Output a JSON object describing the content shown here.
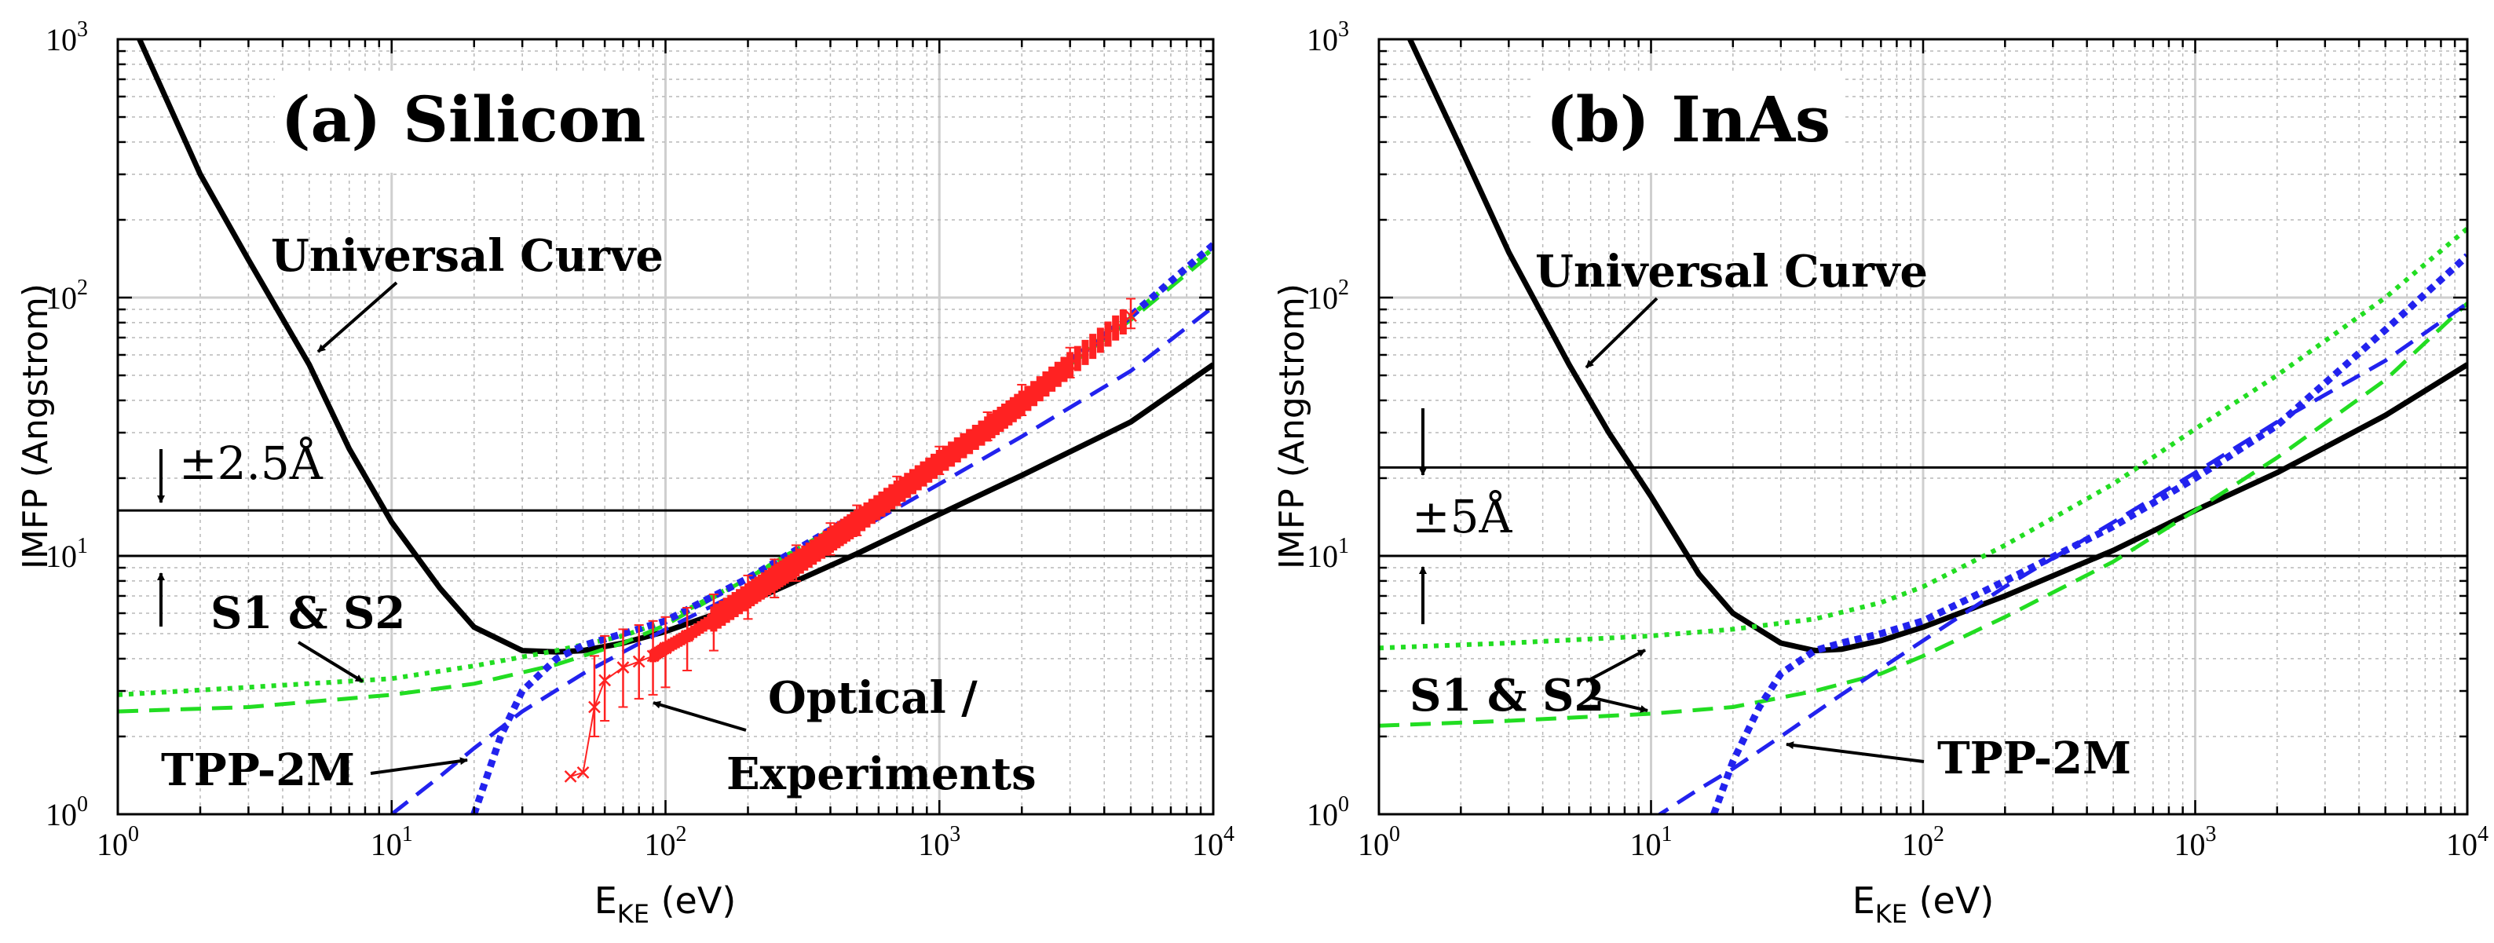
{
  "chart_data": [
    {
      "type": "line",
      "title": "(a) Silicon",
      "xlabel_main": "E",
      "xlabel_sub": "KE",
      "xlabel_unit": " (eV)",
      "ylabel": "IMFP (Angstrom)",
      "xscale": "log",
      "yscale": "log",
      "xlim": [
        1,
        10000
      ],
      "ylim": [
        1,
        1000
      ],
      "grid": true,
      "x_ticks": [
        {
          "b": "10",
          "e": "0"
        },
        {
          "b": "10",
          "e": "1"
        },
        {
          "b": "10",
          "e": "2"
        },
        {
          "b": "10",
          "e": "3"
        },
        {
          "b": "10",
          "e": "4"
        }
      ],
      "y_ticks": [
        {
          "b": "10",
          "e": "0"
        },
        {
          "b": "10",
          "e": "1"
        },
        {
          "b": "10",
          "e": "2"
        },
        {
          "b": "10",
          "e": "3"
        }
      ],
      "hlines": [
        10,
        15
      ],
      "band_label": "±2.5Å",
      "series": [
        {
          "key": "universal",
          "color": "#000000",
          "style": "solid",
          "x": [
            1.2,
            2,
            3,
            5,
            7,
            10,
            15,
            20,
            30,
            40,
            50,
            70,
            100,
            200,
            500,
            1000,
            2000,
            5000,
            10000
          ],
          "y": [
            1000,
            300,
            140,
            55,
            26,
            13.5,
            7.5,
            5.3,
            4.3,
            4.25,
            4.3,
            4.6,
            5.1,
            6.6,
            10.2,
            14.5,
            20.5,
            33,
            55
          ]
        },
        {
          "key": "s1s2_dotted",
          "color": "#22dd22",
          "style": "dotted",
          "x": [
            1,
            3,
            10,
            20,
            40,
            70,
            100,
            200,
            500,
            1000,
            2000,
            5000,
            10000
          ],
          "y": [
            2.9,
            3.1,
            3.35,
            3.75,
            4.3,
            4.9,
            5.6,
            8.2,
            14.5,
            24,
            41,
            85,
            155
          ]
        },
        {
          "key": "s1s2_dashed",
          "color": "#22dd22",
          "style": "dashed",
          "x": [
            1,
            3,
            10,
            20,
            40,
            70,
            100,
            200,
            500,
            1000,
            2000,
            5000,
            10000
          ],
          "y": [
            2.5,
            2.6,
            2.9,
            3.2,
            3.8,
            4.6,
            5.4,
            8.2,
            14.5,
            23,
            40,
            82,
            150
          ]
        },
        {
          "key": "tpp2m_dotted",
          "color": "#2222ee",
          "style": "dotted",
          "x": [
            20,
            25,
            30,
            40,
            50,
            70,
            100,
            200,
            500,
            1000,
            2000,
            5000,
            10000
          ],
          "y": [
            1.0,
            2.0,
            3.0,
            4.0,
            4.5,
            5.0,
            5.6,
            8.2,
            14.5,
            24,
            41,
            85,
            160
          ]
        },
        {
          "key": "tpp2m_dashed",
          "color": "#2222ee",
          "style": "dashed",
          "x": [
            10,
            15,
            20,
            30,
            50,
            100,
            200,
            500,
            1000,
            2000,
            5000,
            10000
          ],
          "y": [
            1.0,
            1.4,
            1.8,
            2.5,
            3.5,
            5.2,
            7.5,
            12.5,
            19,
            29,
            52,
            92
          ]
        },
        {
          "key": "optical",
          "color": "#ff2222",
          "style": "markers",
          "x": [
            45,
            50,
            55,
            60,
            70,
            80,
            90,
            100,
            120,
            150,
            200,
            250,
            300,
            400,
            500,
            700,
            1000,
            1500,
            2000,
            3000,
            5000
          ],
          "y": [
            1.4,
            1.45,
            2.6,
            3.3,
            3.7,
            3.9,
            4.1,
            4.4,
            4.9,
            5.7,
            7.0,
            8.2,
            9.3,
            11.5,
            13.5,
            17.5,
            23,
            31,
            39,
            55,
            85
          ],
          "err_lo": [
            0,
            0,
            0.6,
            1.0,
            1.1,
            1.1,
            1.2,
            1.3,
            1.3,
            1.4,
            1.3,
            1.3,
            1.3,
            1.4,
            1.5,
            1.8,
            2.3,
            3,
            4,
            6,
            9
          ],
          "err_hi": [
            0,
            0,
            1.5,
            1.6,
            1.5,
            1.5,
            1.5,
            1.4,
            1.4,
            1.4,
            1.4,
            1.5,
            1.7,
            1.9,
            2.2,
            2.8,
            3.5,
            5,
            7,
            9,
            14
          ]
        }
      ],
      "annotations": {
        "universal": "Universal Curve",
        "s1s2": "S1 & S2",
        "tpp2m": "TPP-2M",
        "optical_line1": "Optical /",
        "optical_line2": "Experiments"
      }
    },
    {
      "type": "line",
      "title": "(b) InAs",
      "xlabel_main": "E",
      "xlabel_sub": "KE",
      "xlabel_unit": " (eV)",
      "ylabel": "IMFP (Angstrom)",
      "xscale": "log",
      "yscale": "log",
      "xlim": [
        1,
        10000
      ],
      "ylim": [
        1,
        1000
      ],
      "grid": true,
      "x_ticks": [
        {
          "b": "10",
          "e": "0"
        },
        {
          "b": "10",
          "e": "1"
        },
        {
          "b": "10",
          "e": "2"
        },
        {
          "b": "10",
          "e": "3"
        },
        {
          "b": "10",
          "e": "4"
        }
      ],
      "y_ticks": [
        {
          "b": "10",
          "e": "0"
        },
        {
          "b": "10",
          "e": "1"
        },
        {
          "b": "10",
          "e": "2"
        },
        {
          "b": "10",
          "e": "3"
        }
      ],
      "hlines": [
        10,
        22
      ],
      "band_label": "±5Å",
      "series": [
        {
          "key": "universal",
          "color": "#000000",
          "style": "solid",
          "x": [
            1.3,
            2,
            3,
            5,
            7,
            10,
            15,
            20,
            30,
            40,
            50,
            70,
            100,
            200,
            500,
            1000,
            2000,
            5000,
            10000
          ],
          "y": [
            1000,
            380,
            150,
            55,
            30,
            17,
            8.5,
            6.0,
            4.6,
            4.3,
            4.35,
            4.7,
            5.3,
            7.0,
            10.5,
            15,
            21,
            35,
            55
          ]
        },
        {
          "key": "s1s2_dotted",
          "color": "#22dd22",
          "style": "dotted",
          "x": [
            1,
            3,
            10,
            20,
            40,
            70,
            100,
            200,
            500,
            1000,
            2000,
            5000,
            10000
          ],
          "y": [
            4.4,
            4.6,
            4.9,
            5.2,
            5.7,
            6.6,
            7.6,
            11,
            19,
            31,
            50,
            100,
            185
          ]
        },
        {
          "key": "s1s2_dashed",
          "color": "#22dd22",
          "style": "dashed",
          "x": [
            1,
            3,
            10,
            20,
            40,
            70,
            100,
            200,
            500,
            1000,
            2000,
            5000,
            10000
          ],
          "y": [
            2.2,
            2.3,
            2.45,
            2.6,
            3.0,
            3.5,
            4.1,
            5.8,
            9.5,
            15,
            24,
            48,
            95
          ]
        },
        {
          "key": "tpp2m_dotted",
          "color": "#2222ee",
          "style": "dotted",
          "x": [
            17,
            20,
            25,
            30,
            40,
            50,
            70,
            100,
            200,
            500,
            1000,
            2000,
            5000,
            10000
          ],
          "y": [
            1.0,
            1.6,
            2.6,
            3.5,
            4.3,
            4.6,
            5.0,
            5.6,
            8.0,
            13,
            20,
            32,
            75,
            145
          ]
        },
        {
          "key": "tpp2m_dashed",
          "color": "#2222ee",
          "style": "dashed",
          "x": [
            10,
            15,
            20,
            30,
            50,
            100,
            200,
            500,
            1000,
            2000,
            5000,
            10000
          ],
          "y": [
            0.95,
            1.25,
            1.5,
            2.0,
            2.9,
            4.7,
            7.6,
            13.5,
            21,
            33,
            57,
            95
          ]
        }
      ],
      "annotations": {
        "universal": "Universal Curve",
        "s1s2": "S1 & S2",
        "tpp2m": "TPP-2M"
      }
    }
  ]
}
